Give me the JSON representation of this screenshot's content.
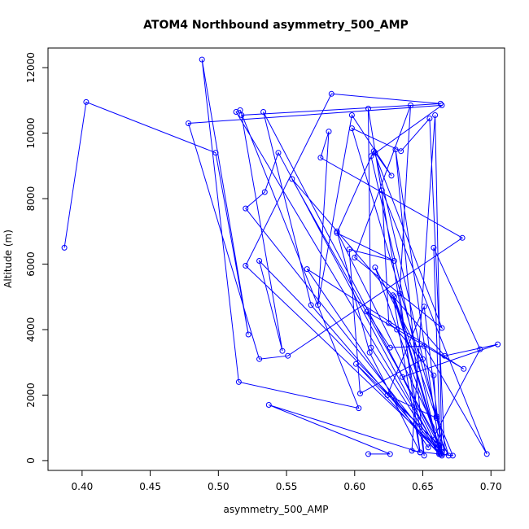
{
  "chart_data": {
    "type": "line",
    "title": "ATOM4 Northbound asymmetry_500_AMP",
    "xlabel": "asymmetry_500_AMP",
    "ylabel": "Altitude (m)",
    "xlim": [
      0.375,
      0.71
    ],
    "ylim": [
      -300,
      12600
    ],
    "x_ticks": [
      0.4,
      0.45,
      0.5,
      0.55,
      0.6,
      0.65,
      0.7
    ],
    "x_tick_labels": [
      "0.40",
      "0.45",
      "0.50",
      "0.55",
      "0.60",
      "0.65",
      "0.70"
    ],
    "y_ticks": [
      0,
      2000,
      4000,
      6000,
      8000,
      10000,
      12000
    ],
    "y_tick_labels": [
      "0",
      "2000",
      "4000",
      "6000",
      "8000",
      "10000",
      "12000"
    ],
    "grid": false,
    "series": [
      {
        "color": "#0000ff",
        "marker": "open-circle",
        "x": [
          0.387,
          0.403,
          0.498,
          0.522,
          0.488,
          0.515,
          0.603,
          0.516,
          0.513,
          0.66,
          0.52,
          0.583,
          0.663,
          0.517,
          0.547,
          0.53,
          0.662,
          0.533,
          0.568,
          0.662,
          0.544,
          0.534,
          0.52,
          0.662,
          0.612,
          0.664,
          0.478,
          0.53,
          0.551,
          0.679,
          0.575,
          0.581,
          0.573,
          0.598,
          0.627,
          0.615,
          0.666,
          0.655,
          0.634,
          0.598,
          0.669,
          0.587,
          0.611,
          0.648,
          0.633,
          0.641,
          0.6,
          0.664,
          0.614,
          0.587,
          0.629,
          0.596,
          0.604,
          0.65,
          0.615,
          0.664,
          0.651,
          0.624,
          0.66,
          0.629,
          0.664,
          0.659,
          0.642,
          0.672,
          0.66,
          0.658,
          0.631,
          0.625,
          0.62,
          0.697,
          0.651,
          0.626,
          0.609,
          0.68,
          0.565,
          0.654,
          0.692,
          0.658,
          0.663,
          0.635,
          0.705,
          0.666,
          0.554,
          0.664,
          0.601,
          0.662,
          0.612,
          0.61,
          0.651,
          0.63,
          0.663,
          0.628,
          0.648,
          0.537,
          0.626,
          0.61
        ],
        "y": [
          6500,
          10950,
          9400,
          3850,
          12250,
          2400,
          1600,
          10700,
          10650,
          400,
          5950,
          11200,
          10900,
          10550,
          3350,
          6100,
          450,
          10650,
          4750,
          200,
          9400,
          8200,
          7700,
          250,
          9300,
          10850,
          10300,
          3100,
          3200,
          6800,
          9250,
          10050,
          4750,
          10550,
          8700,
          9400,
          250,
          10450,
          9450,
          10150,
          150,
          7000,
          3300,
          250,
          5100,
          10850,
          6200,
          4050,
          9450,
          6950,
          6100,
          6450,
          2050,
          3100,
          5900,
          200,
          4700,
          2000,
          1300,
          5000,
          150,
          10550,
          300,
          150,
          1350,
          2600,
          4000,
          4200,
          8250,
          200,
          3500,
          3450,
          4550,
          2800,
          5850,
          400,
          3400,
          6500,
          200,
          2550,
          3550,
          3200,
          8600,
          400,
          2950,
          200,
          3450,
          10750,
          150,
          9500,
          200,
          5050,
          250,
          1700,
          200,
          200
        ]
      }
    ]
  }
}
